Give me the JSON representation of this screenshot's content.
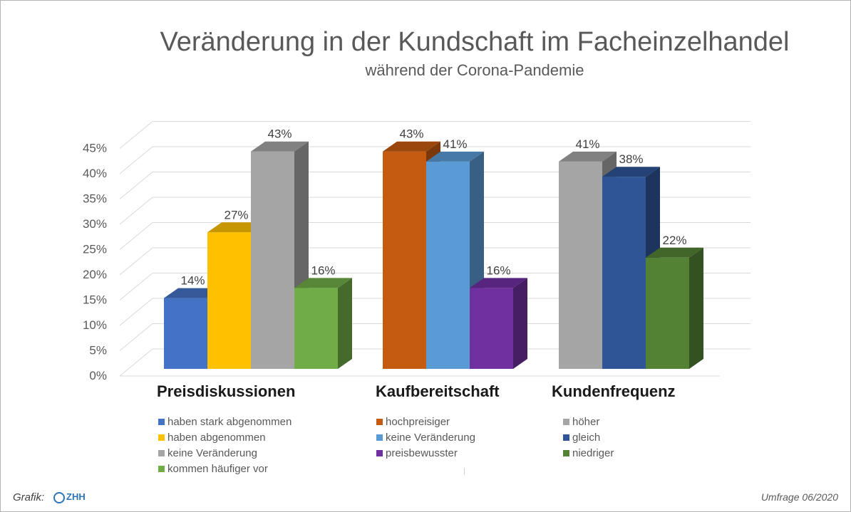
{
  "chart_data": {
    "type": "bar",
    "title": "Veränderung in der Kundschaft im Facheinzelhandel",
    "subtitle": "während der Corona-Pandemie",
    "ylim": [
      0,
      45
    ],
    "yticks": [
      "0%",
      "5%",
      "10%",
      "15%",
      "20%",
      "25%",
      "30%",
      "35%",
      "40%",
      "45%"
    ],
    "grid": true,
    "groups": [
      {
        "label": "Preisdiskussionen",
        "bars": [
          {
            "name": "haben stark abgenommen",
            "value": 14,
            "label": "14%",
            "color": "#4472c4"
          },
          {
            "name": "haben abgenommen",
            "value": 27,
            "label": "27%",
            "color": "#ffc000"
          },
          {
            "name": "keine Veränderung",
            "value": 43,
            "label": "43%",
            "color": "#a5a5a5"
          },
          {
            "name": "kommen häufiger vor",
            "value": 16,
            "label": "16%",
            "color": "#70ad47"
          }
        ]
      },
      {
        "label": "Kaufbereitschaft",
        "bars": [
          {
            "name": "hochpreisiger",
            "value": 43,
            "label": "43%",
            "color": "#c55a11"
          },
          {
            "name": "keine Veränderung",
            "value": 41,
            "label": "41%",
            "color": "#5b9bd5"
          },
          {
            "name": "preisbewusster",
            "value": 16,
            "label": "16%",
            "color": "#7030a0"
          }
        ]
      },
      {
        "label": "Kundenfrequenz",
        "bars": [
          {
            "name": "höher",
            "value": 41,
            "label": "41%",
            "color": "#a5a5a5"
          },
          {
            "name": "gleich",
            "value": 38,
            "label": "38%",
            "color": "#2f5597"
          },
          {
            "name": "niedriger",
            "value": 22,
            "label": "22%",
            "color": "#548235"
          }
        ]
      }
    ]
  },
  "footer": {
    "left": "Grafik:",
    "logo_text": "ZHH",
    "right": "Umfrage 06/2020"
  }
}
